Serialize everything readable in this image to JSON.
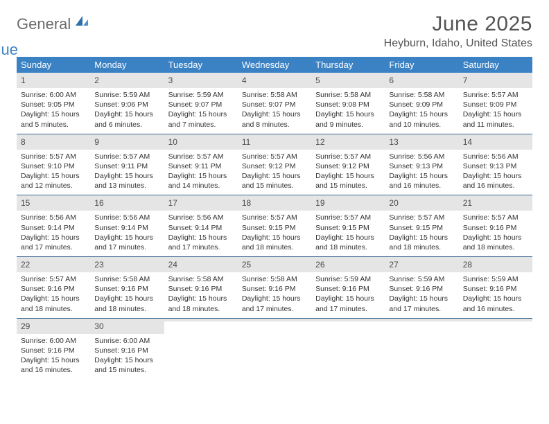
{
  "logo": {
    "line1": "General",
    "line2": "Blue"
  },
  "title": "June 2025",
  "location": "Heyburn, Idaho, United States",
  "colors": {
    "header_bg": "#3b82c4",
    "header_text": "#ffffff",
    "daynum_bg": "#e5e5e5",
    "week_divider": "#3b6a93",
    "text": "#333333",
    "title_text": "#555555"
  },
  "weekdays": [
    "Sunday",
    "Monday",
    "Tuesday",
    "Wednesday",
    "Thursday",
    "Friday",
    "Saturday"
  ],
  "weeks": [
    [
      {
        "n": "1",
        "sunrise": "Sunrise: 6:00 AM",
        "sunset": "Sunset: 9:05 PM",
        "day": "Daylight: 15 hours and 5 minutes."
      },
      {
        "n": "2",
        "sunrise": "Sunrise: 5:59 AM",
        "sunset": "Sunset: 9:06 PM",
        "day": "Daylight: 15 hours and 6 minutes."
      },
      {
        "n": "3",
        "sunrise": "Sunrise: 5:59 AM",
        "sunset": "Sunset: 9:07 PM",
        "day": "Daylight: 15 hours and 7 minutes."
      },
      {
        "n": "4",
        "sunrise": "Sunrise: 5:58 AM",
        "sunset": "Sunset: 9:07 PM",
        "day": "Daylight: 15 hours and 8 minutes."
      },
      {
        "n": "5",
        "sunrise": "Sunrise: 5:58 AM",
        "sunset": "Sunset: 9:08 PM",
        "day": "Daylight: 15 hours and 9 minutes."
      },
      {
        "n": "6",
        "sunrise": "Sunrise: 5:58 AM",
        "sunset": "Sunset: 9:09 PM",
        "day": "Daylight: 15 hours and 10 minutes."
      },
      {
        "n": "7",
        "sunrise": "Sunrise: 5:57 AM",
        "sunset": "Sunset: 9:09 PM",
        "day": "Daylight: 15 hours and 11 minutes."
      }
    ],
    [
      {
        "n": "8",
        "sunrise": "Sunrise: 5:57 AM",
        "sunset": "Sunset: 9:10 PM",
        "day": "Daylight: 15 hours and 12 minutes."
      },
      {
        "n": "9",
        "sunrise": "Sunrise: 5:57 AM",
        "sunset": "Sunset: 9:11 PM",
        "day": "Daylight: 15 hours and 13 minutes."
      },
      {
        "n": "10",
        "sunrise": "Sunrise: 5:57 AM",
        "sunset": "Sunset: 9:11 PM",
        "day": "Daylight: 15 hours and 14 minutes."
      },
      {
        "n": "11",
        "sunrise": "Sunrise: 5:57 AM",
        "sunset": "Sunset: 9:12 PM",
        "day": "Daylight: 15 hours and 15 minutes."
      },
      {
        "n": "12",
        "sunrise": "Sunrise: 5:57 AM",
        "sunset": "Sunset: 9:12 PM",
        "day": "Daylight: 15 hours and 15 minutes."
      },
      {
        "n": "13",
        "sunrise": "Sunrise: 5:56 AM",
        "sunset": "Sunset: 9:13 PM",
        "day": "Daylight: 15 hours and 16 minutes."
      },
      {
        "n": "14",
        "sunrise": "Sunrise: 5:56 AM",
        "sunset": "Sunset: 9:13 PM",
        "day": "Daylight: 15 hours and 16 minutes."
      }
    ],
    [
      {
        "n": "15",
        "sunrise": "Sunrise: 5:56 AM",
        "sunset": "Sunset: 9:14 PM",
        "day": "Daylight: 15 hours and 17 minutes."
      },
      {
        "n": "16",
        "sunrise": "Sunrise: 5:56 AM",
        "sunset": "Sunset: 9:14 PM",
        "day": "Daylight: 15 hours and 17 minutes."
      },
      {
        "n": "17",
        "sunrise": "Sunrise: 5:56 AM",
        "sunset": "Sunset: 9:14 PM",
        "day": "Daylight: 15 hours and 17 minutes."
      },
      {
        "n": "18",
        "sunrise": "Sunrise: 5:57 AM",
        "sunset": "Sunset: 9:15 PM",
        "day": "Daylight: 15 hours and 18 minutes."
      },
      {
        "n": "19",
        "sunrise": "Sunrise: 5:57 AM",
        "sunset": "Sunset: 9:15 PM",
        "day": "Daylight: 15 hours and 18 minutes."
      },
      {
        "n": "20",
        "sunrise": "Sunrise: 5:57 AM",
        "sunset": "Sunset: 9:15 PM",
        "day": "Daylight: 15 hours and 18 minutes."
      },
      {
        "n": "21",
        "sunrise": "Sunrise: 5:57 AM",
        "sunset": "Sunset: 9:16 PM",
        "day": "Daylight: 15 hours and 18 minutes."
      }
    ],
    [
      {
        "n": "22",
        "sunrise": "Sunrise: 5:57 AM",
        "sunset": "Sunset: 9:16 PM",
        "day": "Daylight: 15 hours and 18 minutes."
      },
      {
        "n": "23",
        "sunrise": "Sunrise: 5:58 AM",
        "sunset": "Sunset: 9:16 PM",
        "day": "Daylight: 15 hours and 18 minutes."
      },
      {
        "n": "24",
        "sunrise": "Sunrise: 5:58 AM",
        "sunset": "Sunset: 9:16 PM",
        "day": "Daylight: 15 hours and 18 minutes."
      },
      {
        "n": "25",
        "sunrise": "Sunrise: 5:58 AM",
        "sunset": "Sunset: 9:16 PM",
        "day": "Daylight: 15 hours and 17 minutes."
      },
      {
        "n": "26",
        "sunrise": "Sunrise: 5:59 AM",
        "sunset": "Sunset: 9:16 PM",
        "day": "Daylight: 15 hours and 17 minutes."
      },
      {
        "n": "27",
        "sunrise": "Sunrise: 5:59 AM",
        "sunset": "Sunset: 9:16 PM",
        "day": "Daylight: 15 hours and 17 minutes."
      },
      {
        "n": "28",
        "sunrise": "Sunrise: 5:59 AM",
        "sunset": "Sunset: 9:16 PM",
        "day": "Daylight: 15 hours and 16 minutes."
      }
    ],
    [
      {
        "n": "29",
        "sunrise": "Sunrise: 6:00 AM",
        "sunset": "Sunset: 9:16 PM",
        "day": "Daylight: 15 hours and 16 minutes."
      },
      {
        "n": "30",
        "sunrise": "Sunrise: 6:00 AM",
        "sunset": "Sunset: 9:16 PM",
        "day": "Daylight: 15 hours and 15 minutes."
      },
      {
        "empty": true
      },
      {
        "empty": true
      },
      {
        "empty": true
      },
      {
        "empty": true
      },
      {
        "empty": true
      }
    ]
  ]
}
